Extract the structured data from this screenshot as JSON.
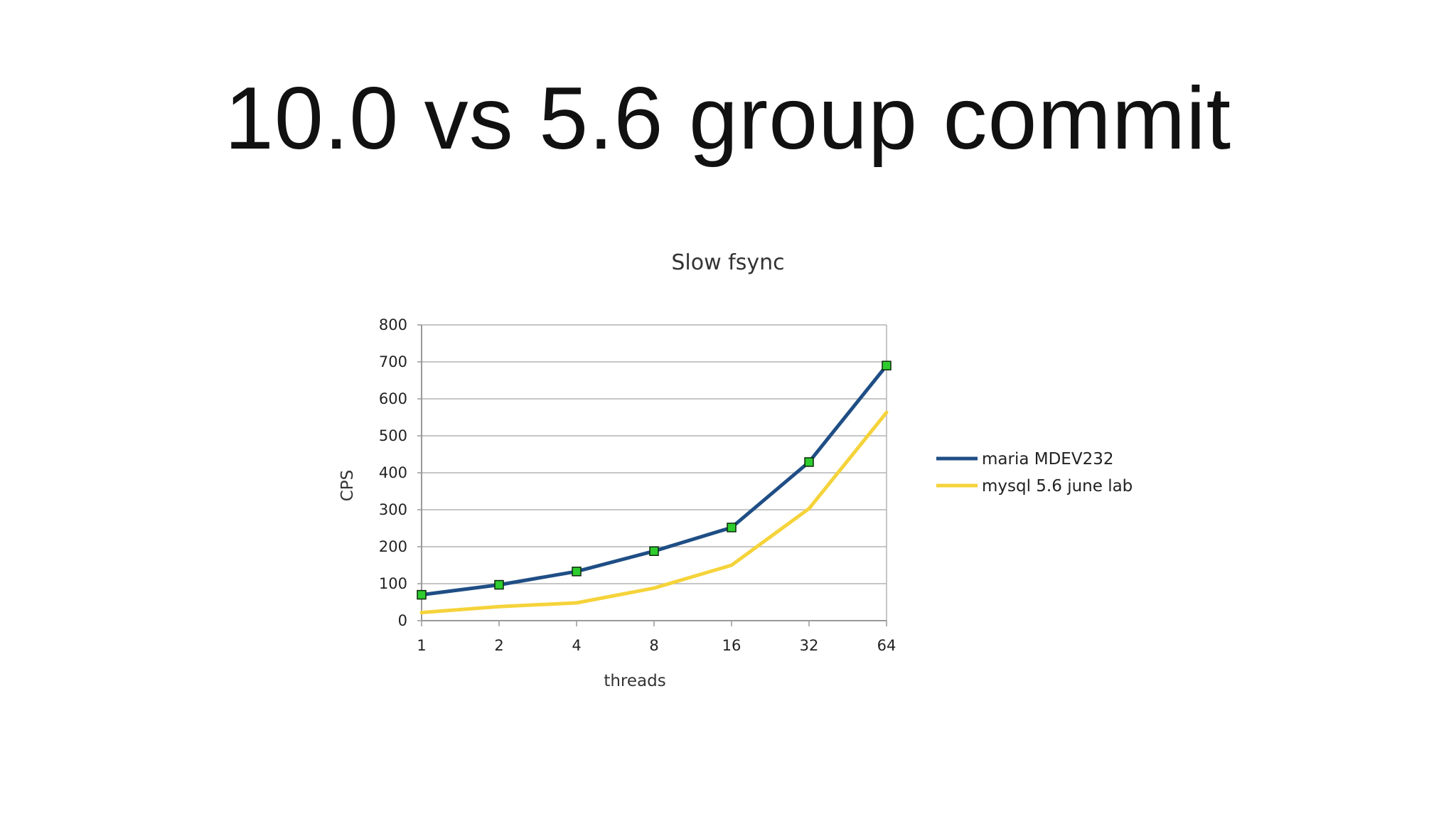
{
  "slide": {
    "title": "10.0 vs 5.6 group commit"
  },
  "colors": {
    "series_maria": "#1f4e85",
    "series_mysql": "#f5d33a",
    "marker_fill": "#2ecc2e",
    "gridline": "#b3b3b3",
    "axis": "#999999"
  },
  "chart_data": {
    "type": "line",
    "title": "Slow fsync",
    "xlabel": "threads",
    "ylabel": "CPS",
    "categories": [
      "1",
      "2",
      "4",
      "8",
      "16",
      "32",
      "64"
    ],
    "ylim": [
      0,
      800
    ],
    "yticks": [
      "0",
      "100",
      "200",
      "300",
      "400",
      "500",
      "600",
      "700",
      "800"
    ],
    "grid": true,
    "legend": "right",
    "series": [
      {
        "name": "maria MDEV232",
        "values": [
          70,
          97,
          133,
          188,
          252,
          429,
          690
        ],
        "color": "#1f4e85",
        "markers": true
      },
      {
        "name": "mysql 5.6 june lab",
        "values": [
          22,
          38,
          48,
          88,
          150,
          303,
          563
        ],
        "color": "#f5d33a",
        "markers": false
      }
    ]
  }
}
